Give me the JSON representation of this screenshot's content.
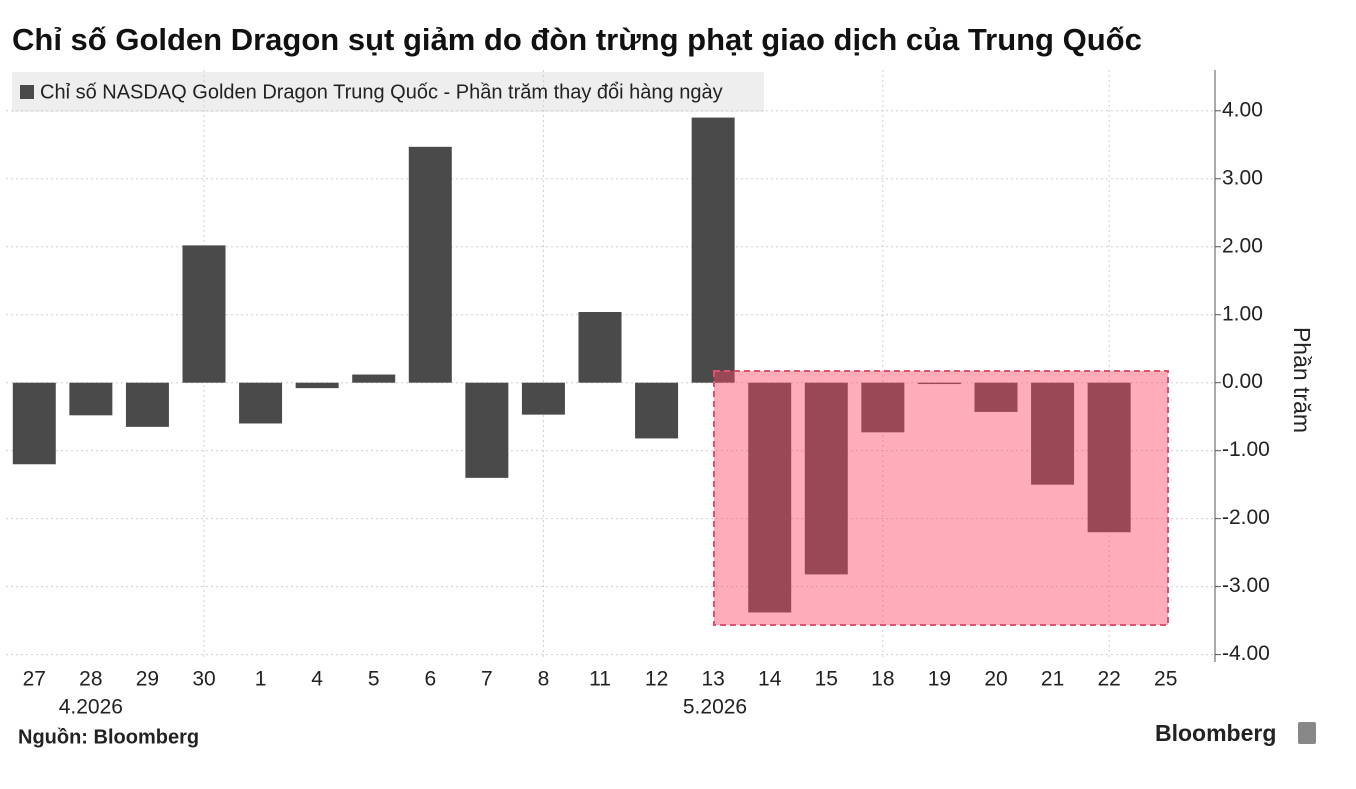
{
  "chart_data": {
    "type": "bar",
    "title": "Chỉ số Golden Dragon sụt giảm do đòn trừng phạt giao dịch của Trung Quốc",
    "series": [
      {
        "name": "Chỉ số NASDAQ Golden Dragon Trung Quốc - Phần trăm thay đổi hàng ngày",
        "color": "#4a4a4a",
        "values": [
          -1.2,
          -0.48,
          -0.65,
          2.02,
          -0.6,
          -0.08,
          0.12,
          3.47,
          -1.4,
          -0.47,
          1.04,
          -0.82,
          3.9,
          -3.38,
          -2.82,
          -0.73,
          -0.02,
          -0.43,
          -1.5,
          -2.2,
          null
        ]
      }
    ],
    "categories": [
      "27",
      "28",
      "29",
      "30",
      "1",
      "4",
      "5",
      "6",
      "7",
      "8",
      "11",
      "12",
      "13",
      "14",
      "15",
      "18",
      "19",
      "20",
      "21",
      "22",
      "25"
    ],
    "month_labels": [
      "4.2026",
      "5.2026"
    ],
    "y_axis_label": "Phần trăm",
    "ylim": [
      -4.05,
      4.6
    ],
    "yticks": [
      {
        "value": 4,
        "label": "4.00"
      },
      {
        "value": 3,
        "label": "3.00"
      },
      {
        "value": 2,
        "label": "2.00"
      },
      {
        "value": 1,
        "label": "1.00"
      },
      {
        "value": 0,
        "label": "0.00"
      },
      {
        "value": -1,
        "label": "-1.00"
      },
      {
        "value": -2,
        "label": "-2.00"
      },
      {
        "value": -3,
        "label": "-3.00"
      },
      {
        "value": -4,
        "label": "-4.00"
      }
    ],
    "grid": true,
    "source": "Nguồn: Bloomberg",
    "brand": "Bloomberg"
  }
}
